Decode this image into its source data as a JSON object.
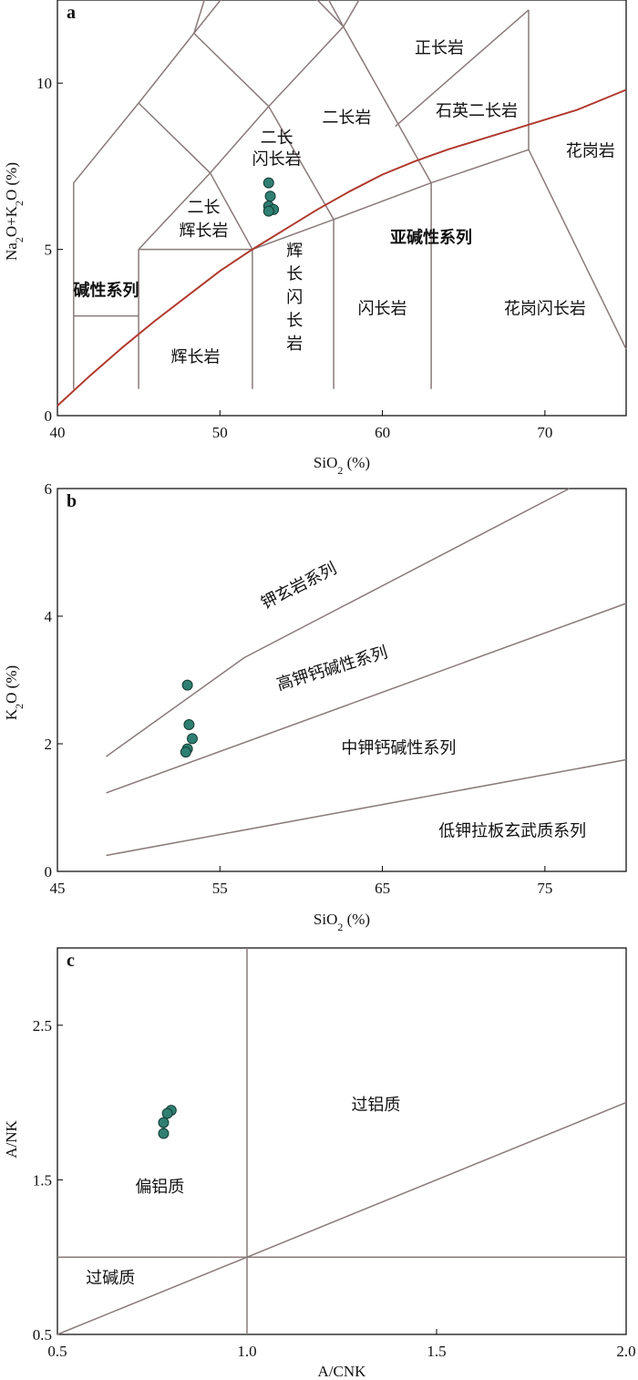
{
  "chart_data": [
    {
      "type": "scatter",
      "panel_label": "a",
      "xlabel": "SiO2 (%)",
      "xlabel_main": "SiO",
      "xlabel_sub": "2",
      "xlabel_tail": " (%)",
      "ylabel": "Na2O+K2O (%)",
      "ylabel_parts": [
        "Na",
        "2",
        "O+K",
        "2",
        "O (%)"
      ],
      "xlim": [
        40,
        75
      ],
      "ylim": [
        0,
        12.5
      ],
      "xticks": [
        40,
        50,
        60,
        70
      ],
      "yticks": [
        0,
        5,
        10
      ],
      "curve": [
        [
          40,
          0.3
        ],
        [
          42,
          1.2
        ],
        [
          44,
          2.05
        ],
        [
          46,
          2.85
        ],
        [
          48,
          3.6
        ],
        [
          50,
          4.35
        ],
        [
          52,
          5.0
        ],
        [
          54,
          5.6
        ],
        [
          56,
          6.2
        ],
        [
          58,
          6.75
        ],
        [
          60,
          7.25
        ],
        [
          62,
          7.65
        ],
        [
          64,
          8.0
        ],
        [
          66,
          8.3
        ],
        [
          68,
          8.6
        ],
        [
          70,
          8.9
        ],
        [
          72,
          9.2
        ],
        [
          75,
          9.8
        ]
      ],
      "series": [
        {
          "x": [
            53.0,
            53.1,
            53.0,
            53.3,
            53.0
          ],
          "y": [
            7.0,
            6.6,
            6.3,
            6.2,
            6.15
          ]
        }
      ],
      "fields": [
        "正长岩",
        "石英二长岩",
        "二长岩",
        "花岗岩",
        "二长",
        "闪长岩",
        "二长",
        "辉长岩",
        "亚碱性系列",
        "碱性系列",
        "辉",
        "长",
        "闪",
        "长",
        "岩",
        "闪长岩",
        "花岗闪长岩",
        "辉长岩"
      ]
    },
    {
      "type": "scatter",
      "panel_label": "b",
      "xlabel": "SiO2 (%)",
      "xlabel_main": "SiO",
      "xlabel_sub": "2",
      "xlabel_tail": " (%)",
      "ylabel": "K2O (%)",
      "ylabel_parts": [
        "K",
        "2",
        "O (%)"
      ],
      "xlim": [
        45,
        80
      ],
      "ylim": [
        0,
        6
      ],
      "xticks": [
        45,
        55,
        65,
        75
      ],
      "yticks": [
        0,
        2,
        4,
        6
      ],
      "series": [
        {
          "x": [
            53.0,
            53.1,
            53.3,
            53.0,
            52.9
          ],
          "y": [
            2.92,
            2.3,
            2.08,
            1.92,
            1.87
          ]
        }
      ],
      "fields": [
        "钾玄岩系列",
        "高钾钙碱性系列",
        "中钾钙碱性系列",
        "低钾拉板玄武质系列"
      ]
    },
    {
      "type": "scatter",
      "panel_label": "c",
      "xlabel": "A/CNK",
      "ylabel": "A/NK",
      "xlim": [
        0.5,
        2.0
      ],
      "ylim": [
        0.5,
        3.0
      ],
      "xticks": [
        "0.5",
        "1.0",
        "1.5",
        "2.0"
      ],
      "yticks": [
        "0.5",
        "1.5",
        "2.5"
      ],
      "series": [
        {
          "x": [
            0.8,
            0.79,
            0.78,
            0.78
          ],
          "y": [
            1.95,
            1.93,
            1.87,
            1.8
          ]
        }
      ],
      "fields": [
        "过铝质",
        "偏铝质",
        "过碱质"
      ]
    }
  ]
}
